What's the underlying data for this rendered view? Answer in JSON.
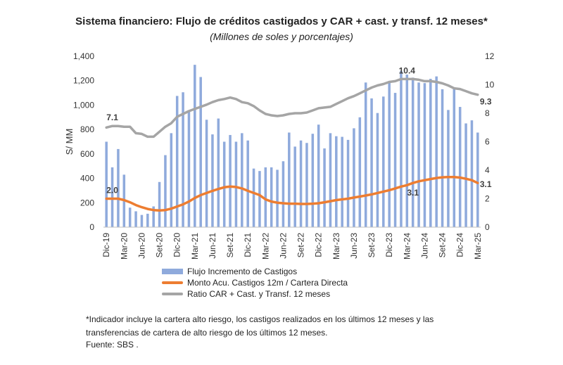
{
  "title": "Sistema financiero: Flujo de créditos castigados y CAR + cast. y transf. 12 meses*",
  "subtitle": "(Millones de soles y porcentajes)",
  "footnote": "*Indicador incluye la cartera alto riesgo, los castigos realizados en los últimos 12 meses y las transferencias de cartera de alto riesgo de los últimos 12 meses.",
  "source": "Fuente: SBS .",
  "chart_data": {
    "type": "bar",
    "ylabel": "S/ MM",
    "ylim": [
      0,
      1400
    ],
    "yticks": [
      "0",
      "200",
      "400",
      "600",
      "800",
      "1,000",
      "1,200",
      "1,400"
    ],
    "y2lim": [
      0,
      12
    ],
    "y2ticks": [
      "0",
      "2",
      "4",
      "6",
      "8",
      "10",
      "12"
    ],
    "tick_labels": [
      "Dic-19",
      "Mar-20",
      "Jun-20",
      "Set-20",
      "Dic-20",
      "Mar-21",
      "Jun-21",
      "Set-21",
      "Dic-21",
      "Mar-22",
      "Jun-22",
      "Set-22",
      "Dic-22",
      "Mar-23",
      "Jun-23",
      "Set-23",
      "Dic-23",
      "Mar-24",
      "Jun-24",
      "Set-24",
      "Dic-24",
      "Mar-25"
    ],
    "categories": [
      "Dic-19",
      "Ene-20",
      "Feb-20",
      "Mar-20",
      "Abr-20",
      "May-20",
      "Jun-20",
      "Jul-20",
      "Ago-20",
      "Set-20",
      "Oct-20",
      "Nov-20",
      "Dic-20",
      "Ene-21",
      "Feb-21",
      "Mar-21",
      "Abr-21",
      "May-21",
      "Jun-21",
      "Jul-21",
      "Ago-21",
      "Set-21",
      "Oct-21",
      "Nov-21",
      "Dic-21",
      "Ene-22",
      "Feb-22",
      "Mar-22",
      "Abr-22",
      "May-22",
      "Jun-22",
      "Jul-22",
      "Ago-22",
      "Set-22",
      "Oct-22",
      "Nov-22",
      "Dic-22",
      "Ene-23",
      "Feb-23",
      "Mar-23",
      "Abr-23",
      "May-23",
      "Jun-23",
      "Jul-23",
      "Ago-23",
      "Set-23",
      "Oct-23",
      "Nov-23",
      "Dic-23",
      "Ene-24",
      "Feb-24",
      "Mar-24",
      "Abr-24",
      "May-24",
      "Jun-24",
      "Jul-24",
      "Ago-24",
      "Set-24",
      "Oct-24",
      "Nov-24",
      "Dic-24",
      "Ene-25",
      "Feb-25",
      "Mar-25"
    ],
    "series": [
      {
        "name": "Flujo Incremento de Castigos",
        "kind": "bar",
        "axis": "left",
        "color": "#8FAADC",
        "values": [
          700,
          490,
          640,
          430,
          160,
          130,
          100,
          110,
          170,
          370,
          590,
          770,
          1075,
          1105,
          950,
          1330,
          1230,
          880,
          760,
          890,
          700,
          755,
          700,
          770,
          710,
          480,
          460,
          490,
          490,
          470,
          540,
          775,
          660,
          710,
          690,
          765,
          840,
          645,
          770,
          745,
          740,
          715,
          810,
          900,
          1185,
          1055,
          935,
          1070,
          1195,
          1100,
          1280,
          1250,
          1225,
          1185,
          1180,
          1215,
          1235,
          1130,
          960,
          1140,
          985,
          850,
          875,
          775
        ]
      },
      {
        "name": "Monto Acu. Castigos 12m / Cartera Directa",
        "kind": "line",
        "axis": "right",
        "color": "#ED7D31",
        "values": [
          2.0,
          2.0,
          2.0,
          1.9,
          1.75,
          1.55,
          1.4,
          1.28,
          1.2,
          1.17,
          1.2,
          1.3,
          1.45,
          1.6,
          1.8,
          2.05,
          2.25,
          2.4,
          2.55,
          2.68,
          2.8,
          2.85,
          2.82,
          2.72,
          2.55,
          2.4,
          2.25,
          1.95,
          1.8,
          1.72,
          1.68,
          1.65,
          1.65,
          1.63,
          1.63,
          1.65,
          1.68,
          1.75,
          1.82,
          1.9,
          1.95,
          2.0,
          2.08,
          2.15,
          2.22,
          2.3,
          2.4,
          2.5,
          2.6,
          2.72,
          2.85,
          2.95,
          3.1,
          3.22,
          3.3,
          3.38,
          3.45,
          3.5,
          3.52,
          3.52,
          3.48,
          3.4,
          3.3,
          3.1
        ]
      },
      {
        "name": "Ratio CAR + Cast. y Transf. 12 meses",
        "kind": "line",
        "axis": "right",
        "color": "#A5A5A5",
        "values": [
          7.0,
          7.1,
          7.1,
          7.05,
          7.05,
          6.6,
          6.55,
          6.35,
          6.35,
          6.7,
          7.05,
          7.3,
          7.75,
          7.95,
          8.15,
          8.3,
          8.45,
          8.6,
          8.78,
          8.92,
          9.0,
          9.1,
          9.0,
          8.78,
          8.7,
          8.5,
          8.2,
          7.95,
          7.85,
          7.8,
          7.85,
          7.95,
          8.0,
          8.0,
          8.05,
          8.2,
          8.35,
          8.4,
          8.45,
          8.65,
          8.85,
          9.05,
          9.2,
          9.4,
          9.6,
          9.8,
          9.95,
          10.05,
          10.2,
          10.25,
          10.4,
          10.4,
          10.4,
          10.35,
          10.25,
          10.25,
          10.2,
          10.1,
          9.95,
          9.75,
          9.7,
          9.55,
          9.4,
          9.3
        ]
      }
    ],
    "data_labels": [
      {
        "series": 1,
        "index": 1,
        "text": "2.0"
      },
      {
        "series": 1,
        "index": 52,
        "text": "3.1"
      },
      {
        "series": 1,
        "index": 63,
        "text": "3.1"
      },
      {
        "series": 2,
        "index": 1,
        "text": "7.1"
      },
      {
        "series": 2,
        "index": 51,
        "text": "10.4"
      },
      {
        "series": 2,
        "index": 63,
        "text": "9.3"
      }
    ]
  }
}
